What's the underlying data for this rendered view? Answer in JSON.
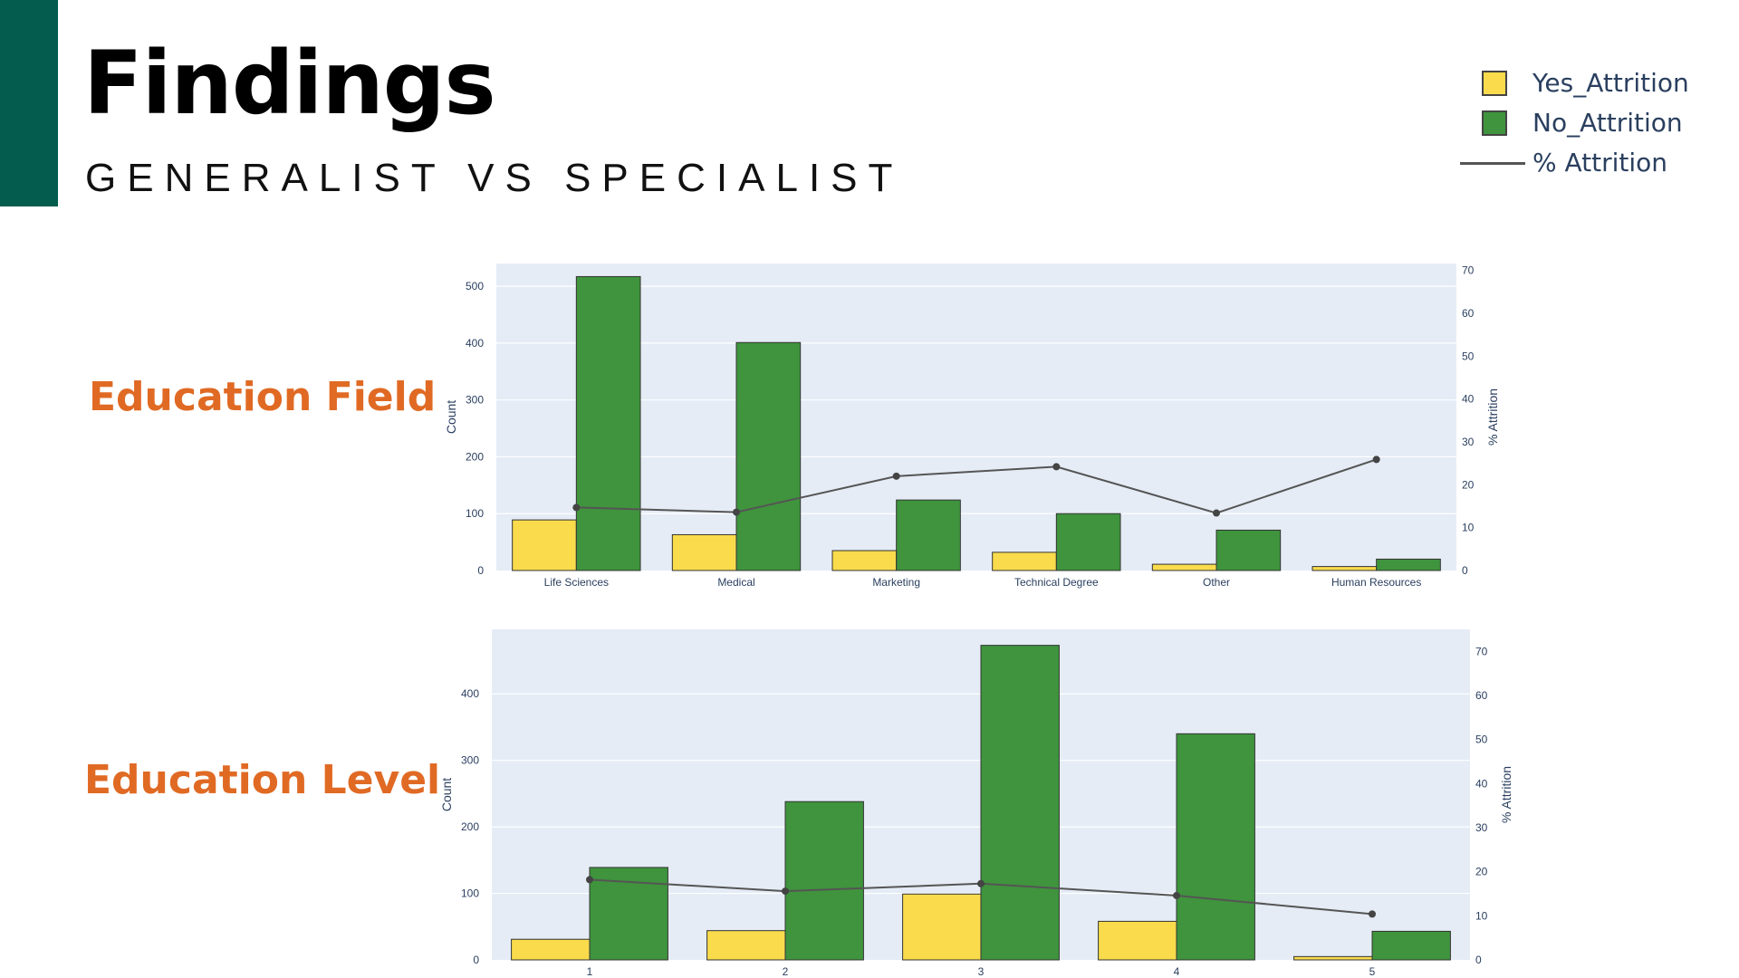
{
  "slide": {
    "title": "Findings",
    "subtitle": "GENERALIST VS SPECIALIST",
    "accent_color": "#035c4e",
    "label_color": "#e06a24"
  },
  "sections": {
    "field_label": "Education Field",
    "level_label": "Education Level"
  },
  "legend": {
    "items": [
      {
        "label": "Yes_Attrition",
        "color": "#f9db4c",
        "kind": "box"
      },
      {
        "label": "No_Attrition",
        "color": "#3f943d",
        "kind": "box"
      },
      {
        "label": "% Attrition",
        "color": "#555555",
        "kind": "line"
      }
    ]
  },
  "chart_data": [
    {
      "type": "bar",
      "categories": [
        "Life Sciences",
        "Medical",
        "Marketing",
        "Technical Degree",
        "Other",
        "Human Resources"
      ],
      "series": [
        {
          "name": "Yes_Attrition",
          "type": "bar",
          "axis": "left",
          "color": "#f9db4c",
          "values": [
            89,
            63,
            35,
            32,
            11,
            7
          ]
        },
        {
          "name": "No_Attrition",
          "type": "bar",
          "axis": "left",
          "color": "#3f943d",
          "values": [
            517,
            401,
            124,
            100,
            71,
            20
          ]
        },
        {
          "name": "% Attrition",
          "type": "line",
          "axis": "right",
          "color": "#555555",
          "values": [
            14.7,
            13.6,
            22.0,
            24.2,
            13.4,
            25.9
          ]
        }
      ],
      "ylabel": "Count",
      "y2label": "% Attrition",
      "ylim": [
        0,
        540
      ],
      "y2lim": [
        0,
        71.6
      ],
      "yticks": [
        0,
        100,
        200,
        300,
        400,
        500
      ],
      "y2ticks": [
        0,
        10,
        20,
        30,
        40,
        50,
        60,
        70
      ],
      "grid": true,
      "plot_bg": "#e5ecf6"
    },
    {
      "type": "bar",
      "categories": [
        "1",
        "2",
        "3",
        "4",
        "5"
      ],
      "series": [
        {
          "name": "Yes_Attrition",
          "type": "bar",
          "axis": "left",
          "color": "#f9db4c",
          "values": [
            31,
            44,
            99,
            58,
            5
          ]
        },
        {
          "name": "No_Attrition",
          "type": "bar",
          "axis": "left",
          "color": "#3f943d",
          "values": [
            139,
            238,
            473,
            340,
            43
          ]
        },
        {
          "name": "% Attrition",
          "type": "line",
          "axis": "right",
          "color": "#555555",
          "values": [
            18.2,
            15.6,
            17.3,
            14.6,
            10.4
          ]
        }
      ],
      "ylabel": "Count",
      "y2label": "% Attrition",
      "ylim": [
        0,
        497
      ],
      "y2lim": [
        0,
        75
      ],
      "yticks": [
        0,
        100,
        200,
        300,
        400
      ],
      "y2ticks": [
        0,
        10,
        20,
        30,
        40,
        50,
        60,
        70
      ],
      "grid": true,
      "plot_bg": "#e5ecf6"
    }
  ]
}
